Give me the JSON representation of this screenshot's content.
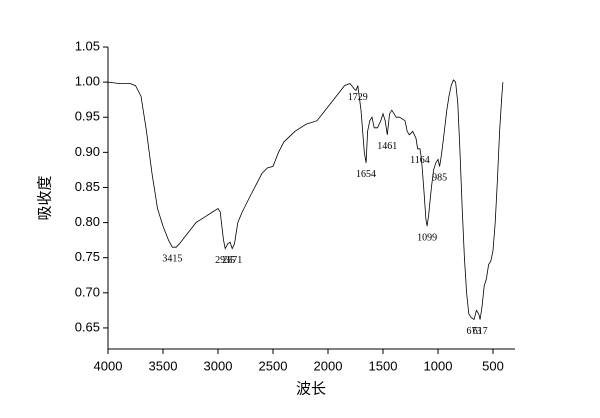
{
  "chart_data": {
    "type": "line",
    "xlabel": "波长",
    "ylabel": "吸收度",
    "xlim": [
      4000,
      300
    ],
    "ylim": [
      0.62,
      1.05
    ],
    "xticks": [
      4000,
      3500,
      3000,
      2500,
      2000,
      1500,
      1000,
      500
    ],
    "yticks": [
      0.65,
      {
        "value": 0.7,
        "label": "0.70"
      },
      0.75,
      {
        "value": 0.8,
        "label": "0.80"
      },
      0.85,
      {
        "value": 0.9,
        "label": "0.90"
      },
      0.95,
      {
        "value": 1.0,
        "label": "1.00"
      },
      1.05
    ],
    "series": [
      {
        "color": "#000000",
        "x": [
          4000,
          3900,
          3800,
          3750,
          3700,
          3650,
          3600,
          3550,
          3500,
          3450,
          3415,
          3380,
          3350,
          3300,
          3250,
          3200,
          3150,
          3100,
          3050,
          3000,
          2980,
          2950,
          2935,
          2910,
          2890,
          2871,
          2850,
          2820,
          2780,
          2700,
          2600,
          2550,
          2500,
          2450,
          2400,
          2300,
          2200,
          2100,
          2050,
          2000,
          1900,
          1850,
          1800,
          1760,
          1745,
          1729,
          1700,
          1670,
          1654,
          1640,
          1620,
          1600,
          1580,
          1550,
          1520,
          1500,
          1480,
          1461,
          1440,
          1420,
          1400,
          1380,
          1350,
          1300,
          1280,
          1260,
          1230,
          1200,
          1185,
          1164,
          1150,
          1130,
          1110,
          1099,
          1085,
          1060,
          1040,
          1020,
          1000,
          985,
          970,
          950,
          920,
          900,
          880,
          860,
          840,
          820,
          800,
          780,
          760,
          740,
          720,
          700,
          673,
          650,
          630,
          617,
          600,
          580,
          560,
          540,
          520,
          500,
          480,
          460,
          440,
          420,
          410
        ],
        "values": [
          1.0,
          0.998,
          0.998,
          0.995,
          0.98,
          0.93,
          0.87,
          0.82,
          0.795,
          0.775,
          0.765,
          0.765,
          0.77,
          0.78,
          0.79,
          0.8,
          0.805,
          0.81,
          0.815,
          0.82,
          0.815,
          0.775,
          0.763,
          0.77,
          0.772,
          0.763,
          0.77,
          0.8,
          0.815,
          0.84,
          0.87,
          0.878,
          0.88,
          0.9,
          0.915,
          0.93,
          0.94,
          0.945,
          0.955,
          0.965,
          0.985,
          0.995,
          0.998,
          0.99,
          0.988,
          0.995,
          0.96,
          0.9,
          0.885,
          0.93,
          0.945,
          0.95,
          0.935,
          0.935,
          0.945,
          0.955,
          0.945,
          0.925,
          0.955,
          0.96,
          0.955,
          0.95,
          0.95,
          0.945,
          0.93,
          0.925,
          0.93,
          0.92,
          0.905,
          0.905,
          0.89,
          0.85,
          0.805,
          0.795,
          0.81,
          0.85,
          0.875,
          0.885,
          0.89,
          0.88,
          0.895,
          0.92,
          0.96,
          0.98,
          0.995,
          1.003,
          1.0,
          0.97,
          0.9,
          0.82,
          0.75,
          0.7,
          0.67,
          0.665,
          0.662,
          0.675,
          0.67,
          0.662,
          0.68,
          0.71,
          0.72,
          0.74,
          0.745,
          0.76,
          0.8,
          0.86,
          0.93,
          0.98,
          1.0
        ]
      }
    ],
    "annotations": [
      3415,
      2935,
      2871,
      1729,
      1654,
      1461,
      1164,
      1099,
      985,
      673,
      617
    ]
  }
}
